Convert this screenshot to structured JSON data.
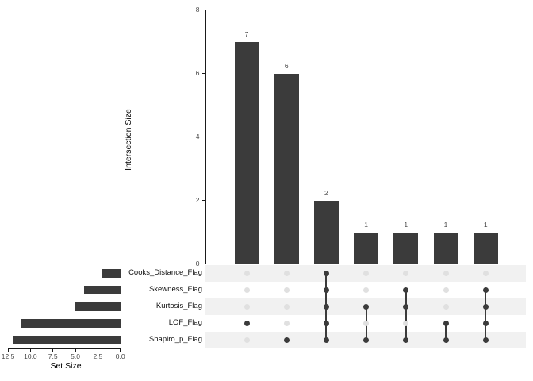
{
  "chart_data": {
    "type": "upset",
    "title": "",
    "intersection_axis": {
      "label": "Intersection Size",
      "ticks": [
        0,
        2,
        4,
        6,
        8
      ],
      "range": [
        0,
        8
      ],
      "grid": false
    },
    "set_axis": {
      "label": "Set Size",
      "ticks": [
        "12.5",
        "10.0",
        "7.5",
        "5.0",
        "2.5",
        "0.0"
      ],
      "range": [
        12.5,
        0
      ]
    },
    "sets": [
      {
        "name": "Cooks_Distance_Flag",
        "size": 2
      },
      {
        "name": "Skewness_Flag",
        "size": 4
      },
      {
        "name": "Kurtosis_Flag",
        "size": 5
      },
      {
        "name": "LOF_Flag",
        "size": 11
      },
      {
        "name": "Shapiro_p_Flag",
        "size": 12
      }
    ],
    "intersections": [
      {
        "size": 7,
        "members": [
          "LOF_Flag"
        ]
      },
      {
        "size": 6,
        "members": [
          "Shapiro_p_Flag"
        ]
      },
      {
        "size": 2,
        "members": [
          "Cooks_Distance_Flag",
          "Skewness_Flag",
          "Kurtosis_Flag",
          "LOF_Flag",
          "Shapiro_p_Flag"
        ]
      },
      {
        "size": 1,
        "members": [
          "Kurtosis_Flag",
          "Shapiro_p_Flag"
        ]
      },
      {
        "size": 1,
        "members": [
          "Skewness_Flag",
          "Kurtosis_Flag",
          "Shapiro_p_Flag"
        ]
      },
      {
        "size": 1,
        "members": [
          "LOF_Flag",
          "Shapiro_p_Flag"
        ]
      },
      {
        "size": 1,
        "members": [
          "Skewness_Flag",
          "Kurtosis_Flag",
          "LOF_Flag",
          "Shapiro_p_Flag"
        ]
      }
    ],
    "colors": {
      "bar": "#3b3b3b",
      "dot_active": "#3b3b3b",
      "dot_inactive": "#e0e0e0",
      "row_band": "#f1f1f1",
      "axis_line": "#1a1a1a",
      "tick_text": "#474747",
      "label_text": "#111111"
    }
  }
}
